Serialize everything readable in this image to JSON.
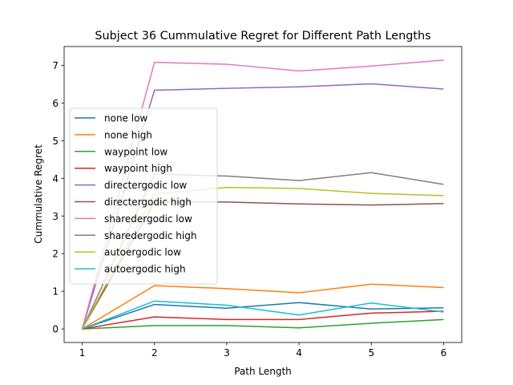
{
  "chart_data": {
    "type": "line",
    "title": "Subject 36 Cummulative Regret for Different Path Lengths",
    "xlabel": "Path Length",
    "ylabel": "Cummulative Regret",
    "x": [
      1,
      2,
      3,
      4,
      5,
      6
    ],
    "xlim": [
      0.75,
      6.25
    ],
    "ylim": [
      -0.36,
      7.5
    ],
    "xticks": [
      1,
      2,
      3,
      4,
      5,
      6
    ],
    "yticks": [
      0,
      1,
      2,
      3,
      4,
      5,
      6,
      7
    ],
    "grid": false,
    "legend_position": "center-left",
    "series": [
      {
        "name": "none low",
        "color": "#1f77b4",
        "values": [
          0,
          0.65,
          0.55,
          0.7,
          0.53,
          0.56
        ]
      },
      {
        "name": "none high",
        "color": "#ff7f0e",
        "values": [
          0,
          1.15,
          1.07,
          0.96,
          1.19,
          1.1
        ]
      },
      {
        "name": "waypoint low",
        "color": "#2ca02c",
        "values": [
          0,
          0.09,
          0.09,
          0.03,
          0.15,
          0.25
        ]
      },
      {
        "name": "waypoint high",
        "color": "#d62728",
        "values": [
          0,
          0.32,
          0.25,
          0.25,
          0.42,
          0.47
        ]
      },
      {
        "name": "directergodic low",
        "color": "#9467bd",
        "values": [
          0,
          6.34,
          6.39,
          6.43,
          6.51,
          6.37
        ]
      },
      {
        "name": "directergodic high",
        "color": "#8c564b",
        "values": [
          0,
          3.37,
          3.37,
          3.32,
          3.29,
          3.33
        ]
      },
      {
        "name": "sharedergodic low",
        "color": "#e377c2",
        "values": [
          0,
          7.08,
          7.03,
          6.85,
          6.98,
          7.14
        ]
      },
      {
        "name": "sharedergodic high",
        "color": "#7f7f7f",
        "values": [
          0,
          4.11,
          4.06,
          3.94,
          4.15,
          3.84
        ]
      },
      {
        "name": "autoergodic low",
        "color": "#bcbd22",
        "values": [
          0,
          3.58,
          3.76,
          3.73,
          3.6,
          3.54
        ]
      },
      {
        "name": "autoergodic high",
        "color": "#17becf",
        "values": [
          0,
          0.74,
          0.63,
          0.37,
          0.69,
          0.45
        ]
      }
    ]
  }
}
